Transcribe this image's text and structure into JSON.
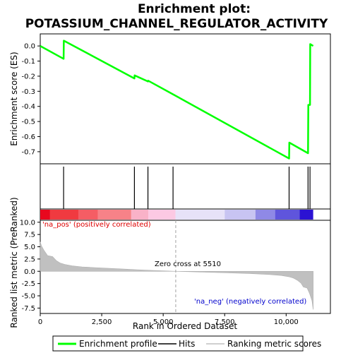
{
  "chart_data": {
    "type": "line",
    "title_line1": "Enrichment plot:",
    "title_line2": "POTASSIUM_CHANNEL_REGULATOR_ACTIVITY",
    "top_panel": {
      "ylabel": "Enrichment score (ES)",
      "ylim": [
        -0.78,
        0.08
      ],
      "yticks": [
        0.0,
        -0.1,
        -0.2,
        -0.3,
        -0.4,
        -0.5,
        -0.6,
        -0.7
      ],
      "ytick_labels": [
        "0.0",
        "-0.1",
        "-0.2",
        "-0.3",
        "-0.4",
        "-0.5",
        "-0.6",
        "-0.7"
      ],
      "series": [
        {
          "name": "Enrichment profile",
          "color": "#00ff00",
          "x": [
            0,
            950,
            960,
            3830,
            3840,
            4380,
            4390,
            5400,
            10120,
            10130,
            10890,
            10900,
            10970,
            10980,
            11100
          ],
          "y": [
            0.0,
            -0.085,
            0.035,
            -0.215,
            -0.195,
            -0.235,
            -0.23,
            -0.32,
            -0.745,
            -0.64,
            -0.71,
            -0.39,
            -0.39,
            0.012,
            0.0
          ]
        }
      ]
    },
    "hits": {
      "positions": [
        950,
        3830,
        4380,
        5400,
        10120,
        10890,
        10970
      ]
    },
    "heatmap": {
      "colors": [
        "#e8081e",
        "#f03a40",
        "#f55d64",
        "#f78288",
        "#f9b2c8",
        "#fcc9e3",
        "#e7e2f8",
        "#c8c4f2",
        "#8f89e6",
        "#5f55dc",
        "#2b12d3"
      ],
      "breaks": [
        0,
        400,
        1550,
        2350,
        3700,
        4400,
        5500,
        7500,
        8750,
        9550,
        10550,
        11100
      ]
    },
    "bottom_panel": {
      "ylabel": "Ranked list metric (PreRanked)",
      "ylim": [
        -8.6,
        10.4
      ],
      "yticks": [
        10.0,
        7.5,
        5.0,
        2.5,
        0.0,
        -2.5,
        -5.0,
        -7.5
      ],
      "ytick_labels": [
        "10.0",
        "7.5",
        "5.0",
        "2.5",
        "0.0",
        "-2.5",
        "-5.0",
        "-7.5"
      ],
      "metric_x": [
        0,
        50,
        150,
        300,
        500,
        650,
        800,
        1000,
        1300,
        1700,
        2200,
        2800,
        3400,
        4000,
        4700,
        5510,
        6500,
        7500,
        8500,
        9300,
        9800,
        10100,
        10300,
        10450,
        10600,
        10700,
        10850,
        10950,
        11050,
        11100
      ],
      "metric_y": [
        6.0,
        5.2,
        4.3,
        3.2,
        3.0,
        2.2,
        1.7,
        1.4,
        1.1,
        0.9,
        0.75,
        0.6,
        0.45,
        0.3,
        0.15,
        0.0,
        -0.15,
        -0.3,
        -0.45,
        -0.65,
        -0.85,
        -1.1,
        -1.4,
        -1.8,
        -2.4,
        -3.2,
        -3.4,
        -4.5,
        -6.0,
        -7.8
      ],
      "positive_label": "'na_pos' (positively correlated)",
      "negative_label": "'na_neg' (negatively correlated)",
      "zero_cross_label": "Zero cross at 5510",
      "zero_cross": 5510
    },
    "x_axis": {
      "label": "Rank in Ordered Dataset",
      "xlim": [
        0,
        11800
      ],
      "xticks": [
        0,
        2500,
        5000,
        7500,
        10000
      ],
      "xtick_labels": [
        "0",
        "2,500",
        "5,000",
        "7,500",
        "10,000"
      ]
    },
    "legend": {
      "placement": "bottom",
      "entries": [
        {
          "label": "Enrichment profile",
          "color": "#00ff00"
        },
        {
          "label": "Hits",
          "color": "#000000"
        },
        {
          "label": "Ranking metric scores",
          "color": "#c0c0c0"
        }
      ]
    }
  }
}
